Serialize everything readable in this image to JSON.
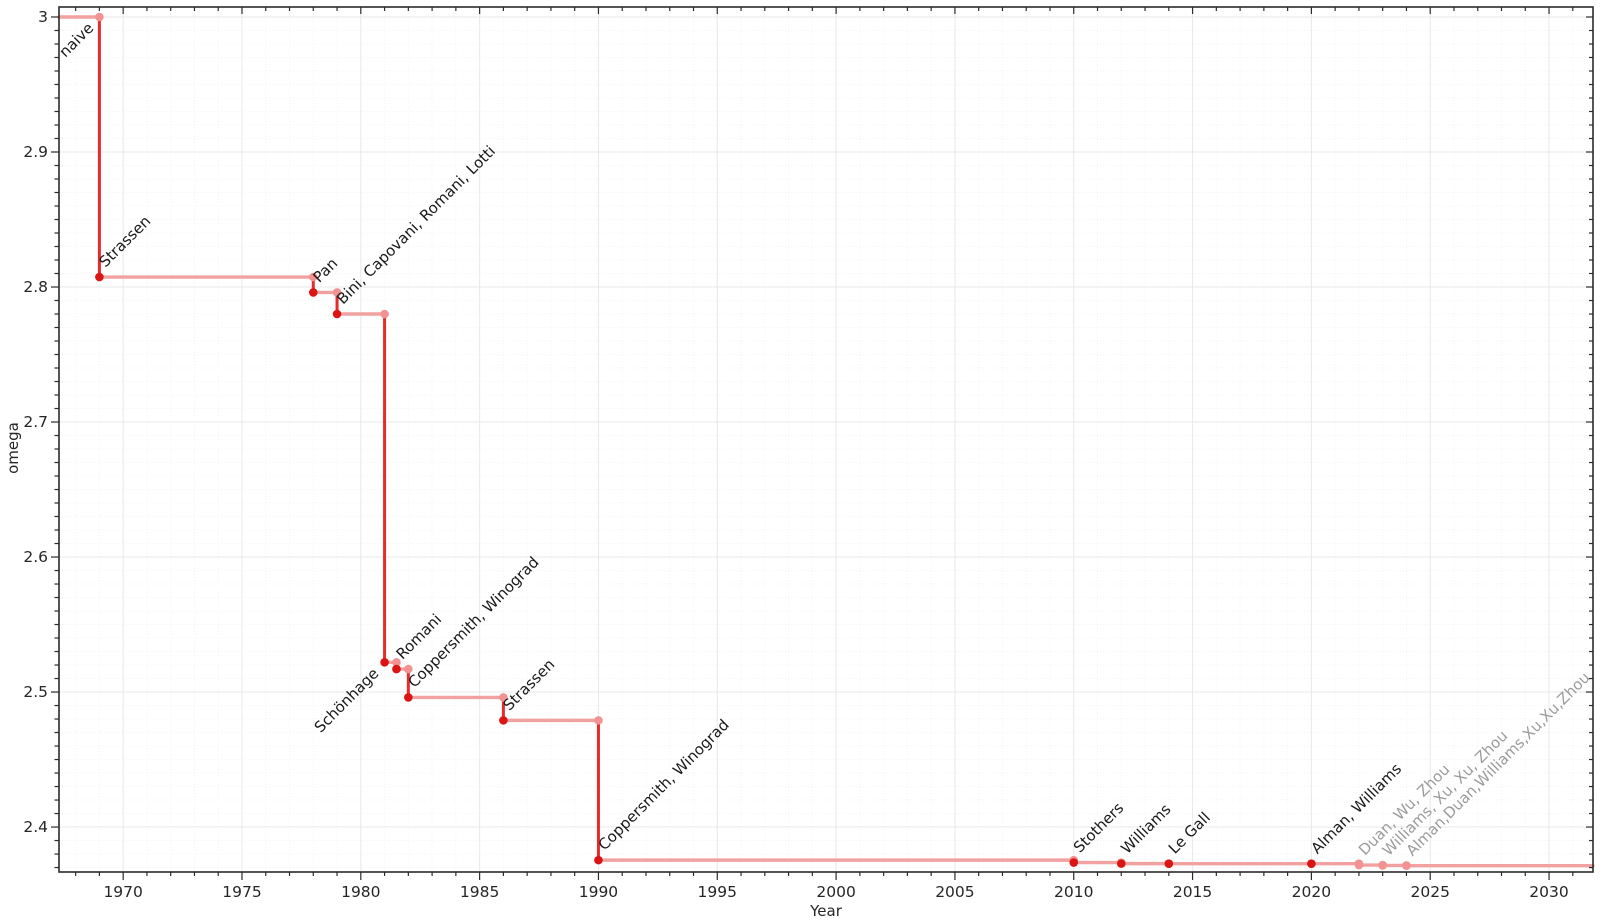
{
  "chart_data": {
    "type": "line",
    "subtype": "step",
    "xlabel": "Year",
    "ylabel": "omega",
    "xlim": [
      1967.3,
      2031.85
    ],
    "ylim": [
      2.3667,
      3.0074
    ],
    "grid": "major-solid-minor-dotted",
    "x_ticks": {
      "values": [
        1970,
        1975,
        1980,
        1985,
        1990,
        1995,
        2000,
        2005,
        2010,
        2015,
        2020,
        2025,
        2030
      ],
      "labels": [
        "1970",
        "1975",
        "1980",
        "1985",
        "1990",
        "1995",
        "2000",
        "2005",
        "2010",
        "2015",
        "2020",
        "2025",
        "2030"
      ],
      "minor_step": 1
    },
    "y_ticks": {
      "values": [
        2.4,
        2.5,
        2.6,
        2.7,
        2.8,
        2.9,
        3.0
      ],
      "labels": [
        "2.4",
        "2.5",
        "2.6",
        "2.7",
        "2.8",
        "2.9",
        "3"
      ],
      "minor_step": 0.01
    },
    "initial": {
      "label": "naive",
      "omega": 3.0,
      "label_color": "dark",
      "label_anchor": "end"
    },
    "algorithms": [
      {
        "year": 1969,
        "omega": 2.8074,
        "label": "Strassen",
        "marker": "dark",
        "label_color": "dark",
        "label_anchor": "start"
      },
      {
        "year": 1978,
        "omega": 2.796,
        "label": "Pan",
        "marker": "dark",
        "label_color": "dark",
        "label_anchor": "start"
      },
      {
        "year": 1979,
        "omega": 2.78,
        "label": "Bini, Capovani, Romani, Lotti",
        "marker": "dark",
        "label_color": "dark",
        "label_anchor": "start"
      },
      {
        "year": 1981,
        "omega": 2.522,
        "label": "Schönhage",
        "marker": "dark",
        "label_color": "dark",
        "label_anchor": "end"
      },
      {
        "year": 1981.5,
        "omega": 2.517,
        "label": "Romani",
        "marker": "dark",
        "label_color": "dark",
        "label_anchor": "start"
      },
      {
        "year": 1982,
        "omega": 2.496,
        "label": "Coppersmith, Winograd",
        "marker": "dark",
        "label_color": "dark",
        "label_anchor": "start"
      },
      {
        "year": 1986,
        "omega": 2.479,
        "label": "Strassen",
        "marker": "dark",
        "label_color": "dark",
        "label_anchor": "start"
      },
      {
        "year": 1990,
        "omega": 2.3755,
        "label": "Coppersmith, Winograd",
        "marker": "dark",
        "label_color": "dark",
        "label_anchor": "start"
      },
      {
        "year": 2010,
        "omega": 2.3737,
        "label": "Stothers",
        "marker": "dark",
        "label_color": "dark",
        "label_anchor": "start"
      },
      {
        "year": 2012,
        "omega": 2.3729,
        "label": "Williams",
        "marker": "dark",
        "label_color": "dark",
        "label_anchor": "start"
      },
      {
        "year": 2014,
        "omega": 2.3728639,
        "label": "Le Gall",
        "marker": "dark",
        "label_color": "dark",
        "label_anchor": "start"
      },
      {
        "year": 2020,
        "omega": 2.3728596,
        "label": "Alman, Williams",
        "marker": "dark",
        "label_color": "dark",
        "label_anchor": "start"
      },
      {
        "year": 2022,
        "omega": 2.371866,
        "label": "Duan, Wu, Zhou",
        "marker": "light",
        "label_color": "gray",
        "label_anchor": "start"
      },
      {
        "year": 2023,
        "omega": 2.371552,
        "label": "Williams, Xu, Xu, Zhou",
        "marker": "light",
        "label_color": "gray",
        "label_anchor": "start"
      },
      {
        "year": 2024,
        "omega": 2.371339,
        "label": "Alman,Duan,Williams,Xu,Xu,Zhou",
        "marker": "light",
        "label_color": "gray",
        "label_anchor": "start"
      }
    ],
    "colors": {
      "step_line": "#f2a1a1",
      "drop_line": "#e62b2b",
      "marker_dark": "#db1414",
      "marker_light": "#f39292",
      "label_dark": "#1a1a1a",
      "label_gray": "#9b9b9b",
      "grid_major": "#e8e8e8",
      "grid_minor": "#f4f4f4",
      "axis": "#2b2b2b",
      "tick_label": "#262626"
    }
  }
}
